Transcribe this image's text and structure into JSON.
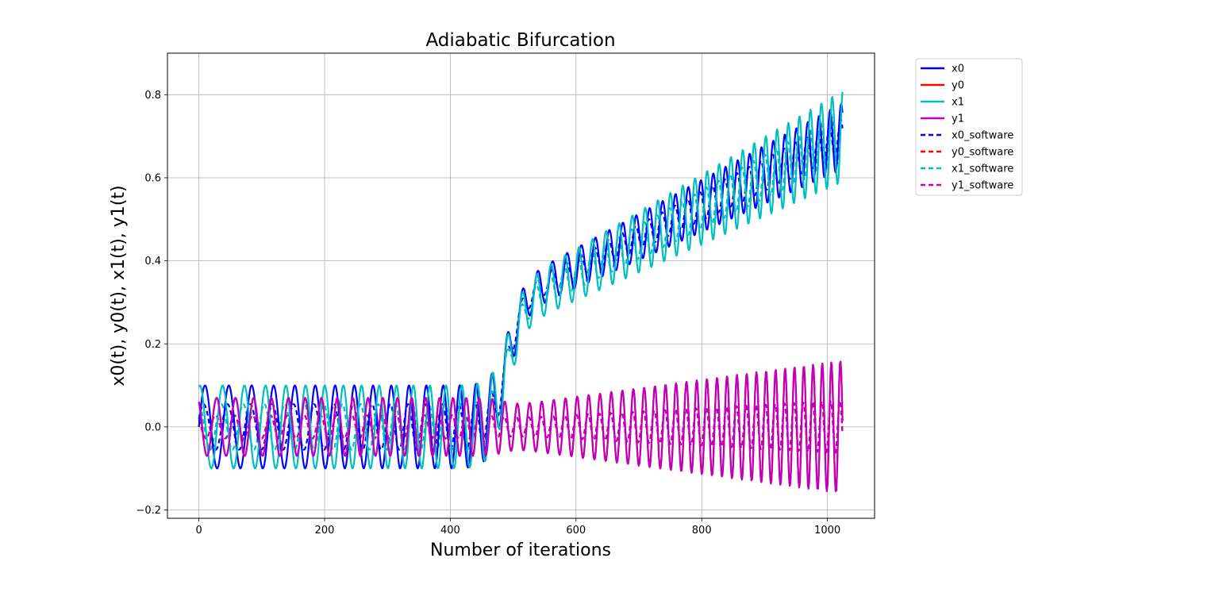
{
  "chart_data": {
    "type": "line",
    "title": "Adiabatic Bifurcation",
    "xlabel": "Number of iterations",
    "ylabel": "x0(t), y0(t), x1(t), y1(t)",
    "xlim": [
      -50,
      1075
    ],
    "ylim": [
      -0.22,
      0.9
    ],
    "xticks": [
      0,
      200,
      400,
      600,
      800,
      1000
    ],
    "yticks": [
      -0.2,
      0.0,
      0.2,
      0.4,
      0.6,
      0.8
    ],
    "xtick_labels": [
      "0",
      "200",
      "400",
      "600",
      "800",
      "1000"
    ],
    "ytick_labels": [
      "−0.2",
      "0.0",
      "0.2",
      "0.4",
      "0.6",
      "0.8"
    ],
    "grid": true,
    "legend_position": "outside-right-top",
    "n_iterations": 1024,
    "series": [
      {
        "name": "x0",
        "color": "#0000ff",
        "style": "solid",
        "shape": "x0"
      },
      {
        "name": "y0",
        "color": "#ff0000",
        "style": "solid",
        "shape": "y"
      },
      {
        "name": "x1",
        "color": "#00bfbf",
        "style": "solid",
        "shape": "x1"
      },
      {
        "name": "y1",
        "color": "#bf00bf",
        "style": "solid",
        "shape": "y"
      },
      {
        "name": "x0_software",
        "color": "#0000ff",
        "style": "dashed",
        "shape": "x0"
      },
      {
        "name": "y0_software",
        "color": "#ff0000",
        "style": "dashed",
        "shape": "y"
      },
      {
        "name": "x1_software",
        "color": "#00bfbf",
        "style": "dashed",
        "shape": "x1"
      },
      {
        "name": "y1_software",
        "color": "#bf00bf",
        "style": "dashed",
        "shape": "y"
      }
    ],
    "key_points": {
      "bifurcation_iteration": 490,
      "x0_final_mean": 0.7,
      "x0_final_amplitude": 0.08,
      "x1_final_amplitude": 0.11,
      "y_final_amplitude": 0.16,
      "early_amplitude": 0.1
    }
  }
}
